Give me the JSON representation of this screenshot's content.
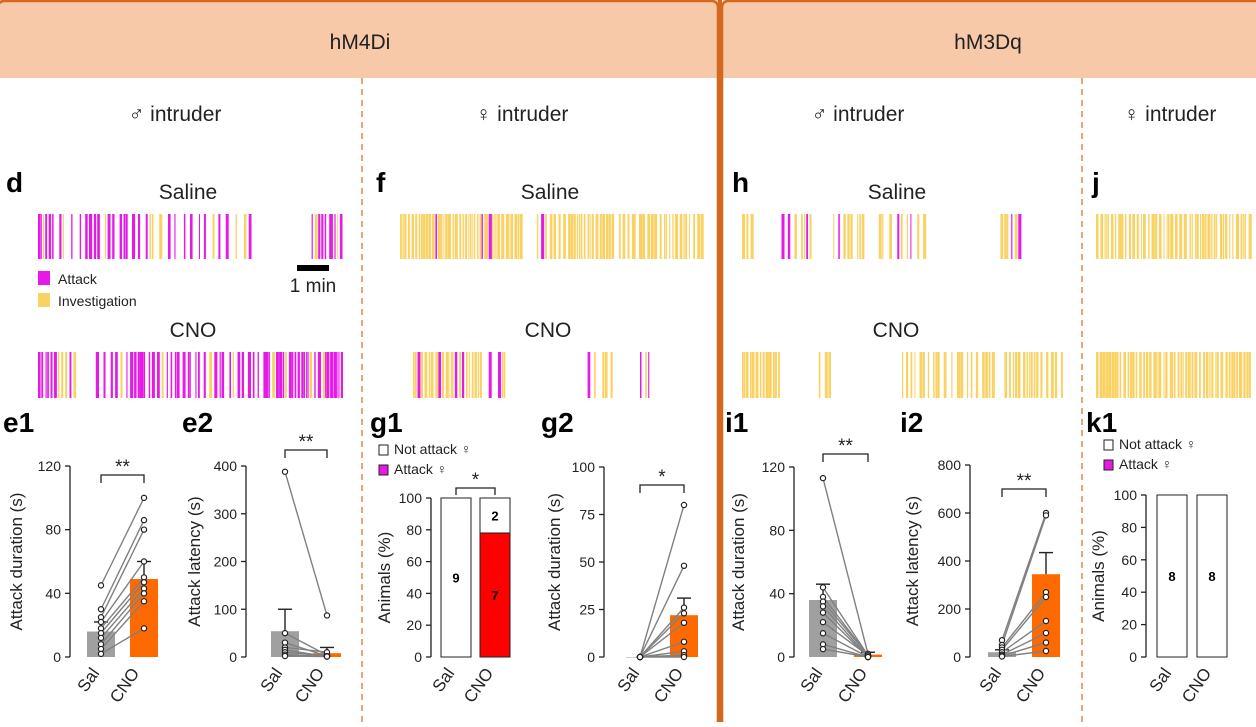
{
  "headers": {
    "left": "hM4Di",
    "right": "hM3Dq"
  },
  "intruders": {
    "male": "♂ intruder",
    "female": "♀ intruder"
  },
  "panel_letters": {
    "d": "d",
    "f": "f",
    "h": "h",
    "j": "j",
    "e1": "e1",
    "e2": "e2",
    "g1": "g1",
    "g2": "g2",
    "i1": "i1",
    "i2": "i2",
    "k1": "k1"
  },
  "rasters": {
    "saline": "Saline",
    "cno": "CNO",
    "legend_attack": "Attack",
    "legend_investigation": "Investigation",
    "scale_label": "1 min"
  },
  "colors": {
    "header_bg": "#f8c9a8",
    "border": "#d2691e",
    "attack": "#e619e6",
    "investigation": "#fad264",
    "saline_bar": "#a0a0a0",
    "cno_bar": "#ff6a00",
    "attack_stack": "#ff0000",
    "k1_attack": "#e619e6"
  },
  "chart_data": [
    {
      "id": "e1",
      "type": "bar",
      "categories": [
        "Sal",
        "CNO"
      ],
      "values": [
        16,
        49
      ],
      "errors": [
        6,
        11
      ],
      "ylim": [
        0,
        120
      ],
      "yticks": [
        0,
        40,
        80,
        120
      ],
      "ylabel": "Attack duration (s)",
      "significance": "**",
      "pairs": [
        [
          45,
          100
        ],
        [
          30,
          86
        ],
        [
          25,
          80
        ],
        [
          22,
          60
        ],
        [
          18,
          50
        ],
        [
          15,
          47
        ],
        [
          12,
          43
        ],
        [
          8,
          40
        ],
        [
          5,
          35
        ],
        [
          2,
          18
        ]
      ]
    },
    {
      "id": "e2",
      "type": "bar",
      "categories": [
        "Sal",
        "CNO"
      ],
      "values": [
        54,
        8
      ],
      "errors": [
        46,
        12
      ],
      "ylim": [
        0,
        400
      ],
      "yticks": [
        0,
        100,
        200,
        300,
        400
      ],
      "ylabel": "Attack latency (s)",
      "significance": "**",
      "pairs": [
        [
          388,
          87
        ],
        [
          50,
          4
        ],
        [
          30,
          2
        ],
        [
          20,
          10
        ],
        [
          15,
          1
        ],
        [
          10,
          2
        ],
        [
          5,
          1
        ],
        [
          2,
          1
        ]
      ]
    },
    {
      "id": "g1",
      "type": "bar",
      "categories": [
        "Sal",
        "CNO"
      ],
      "stacked": [
        {
          "name": "Not attack ♀",
          "values": [
            100,
            22
          ],
          "counts": [
            "9",
            "2"
          ]
        },
        {
          "name": "Attack ♀",
          "values": [
            0,
            78
          ],
          "counts": [
            "",
            "7"
          ]
        }
      ],
      "ylim": [
        0,
        100
      ],
      "yticks": [
        0,
        20,
        40,
        60,
        80,
        100
      ],
      "ylabel": "Animals (%)",
      "significance": "*",
      "legend": [
        "Not attack ♀",
        "Attack ♀"
      ]
    },
    {
      "id": "g2",
      "type": "bar",
      "categories": [
        "Sal",
        "CNO"
      ],
      "values": [
        0,
        22
      ],
      "errors": [
        0,
        9
      ],
      "ylim": [
        0,
        100
      ],
      "yticks": [
        0,
        25,
        50,
        75,
        100
      ],
      "ylabel": "Attack duration (s)",
      "significance": "*",
      "pairs": [
        [
          0,
          80
        ],
        [
          0,
          48
        ],
        [
          0,
          26
        ],
        [
          0,
          23
        ],
        [
          0,
          18
        ],
        [
          0,
          8
        ],
        [
          0,
          3
        ],
        [
          0,
          1
        ],
        [
          0,
          0
        ]
      ]
    },
    {
      "id": "i1",
      "type": "bar",
      "categories": [
        "Sal",
        "CNO"
      ],
      "values": [
        36,
        1.5
      ],
      "errors": [
        10,
        1.5
      ],
      "ylim": [
        0,
        120
      ],
      "yticks": [
        0,
        40,
        80,
        120
      ],
      "ylabel": "Attack duration (s)",
      "significance": "**",
      "pairs": [
        [
          113,
          2
        ],
        [
          44,
          1
        ],
        [
          38,
          1
        ],
        [
          35,
          1
        ],
        [
          32,
          0
        ],
        [
          28,
          0
        ],
        [
          22,
          1
        ],
        [
          15,
          0
        ],
        [
          8,
          0
        ],
        [
          5,
          0
        ]
      ]
    },
    {
      "id": "i2",
      "type": "bar",
      "categories": [
        "Sal",
        "CNO"
      ],
      "values": [
        20,
        345
      ],
      "errors": [
        10,
        90
      ],
      "ylim": [
        0,
        800
      ],
      "yticks": [
        0,
        200,
        400,
        600,
        800
      ],
      "ylabel": "Attack latency (s)",
      "significance": "**",
      "pairs": [
        [
          70,
          600
        ],
        [
          50,
          590
        ],
        [
          40,
          270
        ],
        [
          30,
          250
        ],
        [
          20,
          150
        ],
        [
          10,
          100
        ],
        [
          5,
          60
        ],
        [
          2,
          25
        ]
      ]
    },
    {
      "id": "k1",
      "type": "bar",
      "categories": [
        "Sal",
        "CNO"
      ],
      "stacked": [
        {
          "name": "Not attack ♀",
          "values": [
            100,
            100
          ],
          "counts": [
            "8",
            "8"
          ]
        },
        {
          "name": "Attack ♀",
          "values": [
            0,
            0
          ],
          "counts": [
            "",
            ""
          ]
        }
      ],
      "ylim": [
        0,
        100
      ],
      "yticks": [
        0,
        20,
        40,
        60,
        80,
        100
      ],
      "ylabel": "Animals (%)",
      "significance": "",
      "legend": [
        "Not attack ♀",
        "Attack ♀"
      ]
    }
  ]
}
